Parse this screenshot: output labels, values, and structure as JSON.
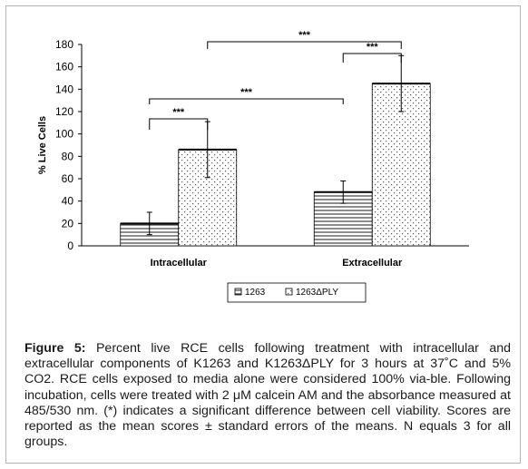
{
  "chart_data": {
    "type": "bar",
    "ylabel": "% Live Cells",
    "ylim": [
      0,
      180
    ],
    "yticks": [
      "0",
      "20",
      "40",
      "60",
      "80",
      "100",
      "120",
      "140",
      "160",
      "180"
    ],
    "categories": [
      "Intracellular",
      "Extracellular"
    ],
    "series": [
      {
        "name": "1263",
        "values": [
          20,
          48
        ],
        "errors": [
          10,
          10
        ],
        "pattern": "horizontal-lines"
      },
      {
        "name": "1263ΔPLY",
        "values": [
          86,
          145
        ],
        "errors": [
          25,
          25
        ],
        "pattern": "dots"
      }
    ],
    "significance": [
      {
        "label": "***",
        "between": [
          "Intracellular 1263",
          "Intracellular 1263ΔPLY"
        ]
      },
      {
        "label": "***",
        "between": [
          "Intracellular 1263",
          "Extracellular 1263"
        ]
      },
      {
        "label": "***",
        "between": [
          "Extracellular 1263",
          "Extracellular 1263ΔPLY"
        ]
      },
      {
        "label": "***",
        "between": [
          "Intracellular 1263ΔPLY",
          "Extracellular 1263ΔPLY"
        ]
      }
    ],
    "legend_placement": "bottom-center",
    "grid": false
  },
  "caption": {
    "label": "Figure 5:",
    "text": " Percent live RCE cells following treatment with intracellular and extracellular components of K1263 and K1263ΔPLY for 3 hours at 37˚C and 5% CO2.  RCE cells exposed to media alone were considered 100% via-ble.  Following incubation, cells were treated with 2 μM calcein AM and the absorbance measured at 485/530 nm.  (*) indicates a significant difference between cell viability.  Scores are reported as the mean scores ± standard errors of the means.  N equals 3 for all groups."
  }
}
